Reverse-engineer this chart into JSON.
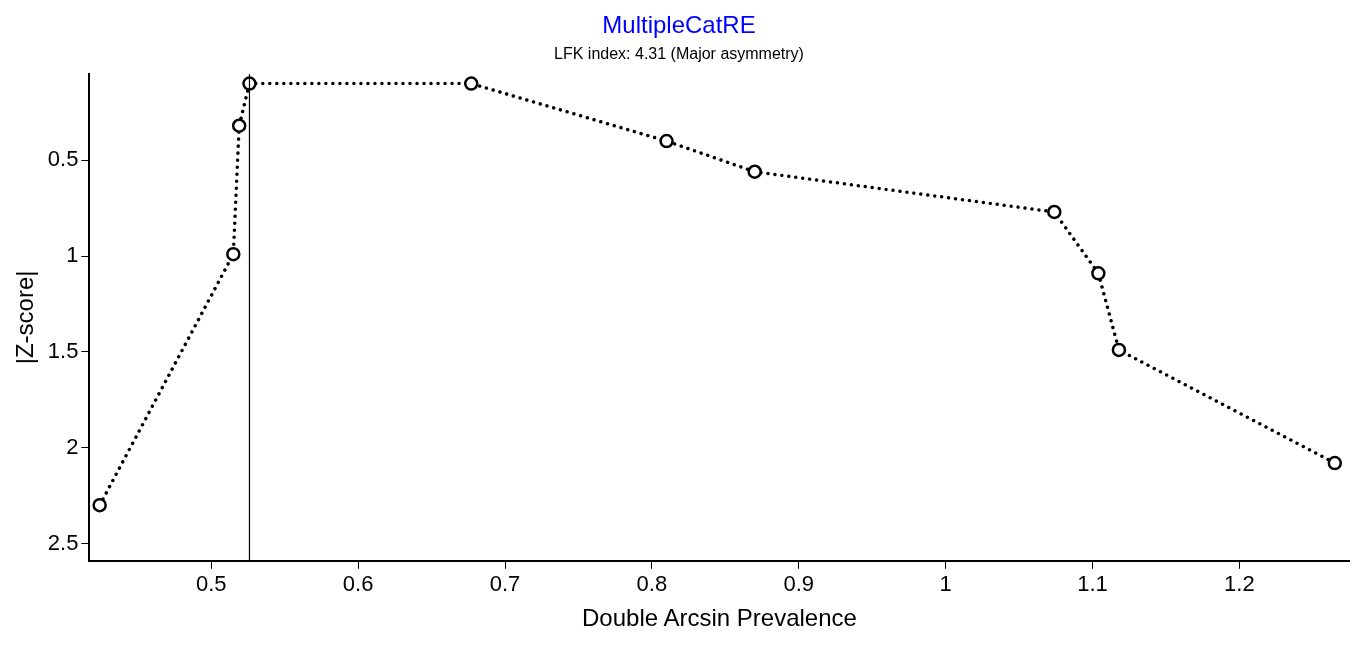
{
  "chart_data": {
    "type": "line",
    "title": "MultipleCatRE",
    "subtitle": "LFK index: 4.31 (Major asymmetry)",
    "xlabel": "Double Arcsin Prevalence",
    "ylabel": "|Z-score|",
    "x": [
      0.424,
      0.515,
      0.519,
      0.526,
      0.677,
      0.81,
      0.87,
      1.074,
      1.104,
      1.118,
      1.265
    ],
    "series": [
      {
        "color": "#000000",
        "values": [
          2.3,
          0.99,
          0.32,
          0.1,
          0.1,
          0.4,
          0.56,
          0.77,
          1.09,
          1.49,
          2.08
        ]
      }
    ],
    "xlim": [
      0.417,
      1.275
    ],
    "xticks": [
      0.5,
      0.6,
      0.7,
      0.8,
      0.9,
      1,
      1.1,
      1.2
    ],
    "ylim": [
      2.59,
      0.05
    ],
    "yticks": [
      0.5,
      1,
      1.5,
      2,
      2.5
    ],
    "ref_lines": [
      {
        "axis": "x",
        "value": 0.526,
        "color": "#000000",
        "line_style": "solid"
      }
    ],
    "grid": false,
    "legend": false,
    "marker": "circle",
    "line_style": "dotted"
  }
}
